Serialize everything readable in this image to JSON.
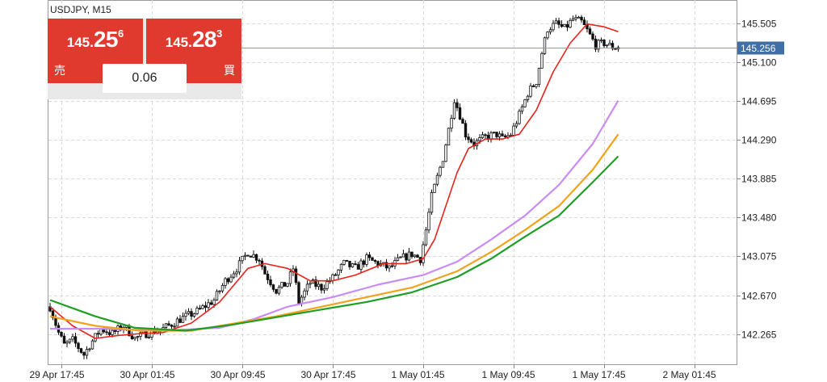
{
  "header": {
    "symbol_timeframe": "USDJPY, M15"
  },
  "trade_panel": {
    "sell": {
      "price_small": "145.",
      "price_big": "25",
      "price_sup": "6",
      "label": "売"
    },
    "buy": {
      "price_small": "145.",
      "price_big": "28",
      "price_sup": "3",
      "label": "買"
    },
    "spread": "0.06"
  },
  "colors": {
    "candle": "#111111",
    "ma_red": "#e8231c",
    "ma_violet": "#c98cf5",
    "ma_orange": "#f2a21b",
    "ma_green": "#1e9e24",
    "current_price_line": "#7fa2c4",
    "current_price_tag": "#3f6fa4",
    "grid": "#d9d9d9",
    "sell_button": "#e03a2f"
  },
  "chart_data": {
    "type": "candlestick",
    "current_price": 145.256,
    "current_price_label": "145.256",
    "ylim": [
      141.95,
      145.75
    ],
    "y_ticks": [
      142.265,
      142.67,
      143.075,
      143.48,
      143.885,
      144.29,
      144.695,
      145.1,
      145.505
    ],
    "y_tick_labels": [
      "142.265",
      "142.670",
      "143.075",
      "143.480",
      "143.885",
      "144.290",
      "144.695",
      "145.100",
      "145.505"
    ],
    "x_tick_labels": [
      "29 Apr 17:45",
      "30 Apr 01:45",
      "30 Apr 09:45",
      "30 Apr 17:45",
      "1 May 01:45",
      "1 May 09:45",
      "1 May 17:45",
      "2 May 01:45"
    ],
    "x_tick_bar_index": [
      4,
      36,
      68,
      100,
      132,
      164,
      196,
      228
    ],
    "bar_count": 230,
    "grid": true,
    "close_anchors": [
      [
        0,
        142.55
      ],
      [
        3,
        142.28
      ],
      [
        5,
        142.15
      ],
      [
        8,
        142.2
      ],
      [
        12,
        142.05
      ],
      [
        14,
        142.15
      ],
      [
        18,
        142.32
      ],
      [
        22,
        142.27
      ],
      [
        26,
        142.35
      ],
      [
        30,
        142.22
      ],
      [
        34,
        142.27
      ],
      [
        40,
        142.32
      ],
      [
        46,
        142.42
      ],
      [
        52,
        142.5
      ],
      [
        58,
        142.62
      ],
      [
        62,
        142.82
      ],
      [
        66,
        142.95
      ],
      [
        70,
        143.12
      ],
      [
        74,
        143.05
      ],
      [
        76,
        142.9
      ],
      [
        80,
        142.72
      ],
      [
        84,
        142.8
      ],
      [
        86,
        142.95
      ],
      [
        88,
        142.6
      ],
      [
        92,
        142.8
      ],
      [
        96,
        142.75
      ],
      [
        100,
        142.85
      ],
      [
        104,
        143.0
      ],
      [
        108,
        142.95
      ],
      [
        112,
        143.05
      ],
      [
        116,
        143.0
      ],
      [
        120,
        142.95
      ],
      [
        124,
        143.05
      ],
      [
        128,
        143.1
      ],
      [
        131,
        143.05
      ],
      [
        133,
        143.35
      ],
      [
        135,
        143.7
      ],
      [
        137,
        143.9
      ],
      [
        139,
        144.1
      ],
      [
        141,
        144.4
      ],
      [
        143,
        144.72
      ],
      [
        145,
        144.55
      ],
      [
        147,
        144.35
      ],
      [
        150,
        144.25
      ],
      [
        154,
        144.32
      ],
      [
        158,
        144.35
      ],
      [
        160,
        144.3
      ],
      [
        163,
        144.35
      ],
      [
        166,
        144.55
      ],
      [
        169,
        144.78
      ],
      [
        172,
        144.9
      ],
      [
        174,
        145.2
      ],
      [
        176,
        145.45
      ],
      [
        179,
        145.5
      ],
      [
        182,
        145.45
      ],
      [
        185,
        145.55
      ],
      [
        188,
        145.52
      ],
      [
        190,
        145.43
      ],
      [
        193,
        145.28
      ],
      [
        196,
        145.3
      ],
      [
        199,
        145.26
      ],
      [
        201,
        145.25
      ]
    ],
    "series": [
      {
        "color_key": "ma_red",
        "points": [
          [
            0,
            142.55
          ],
          [
            8,
            142.35
          ],
          [
            16,
            142.22
          ],
          [
            24,
            142.25
          ],
          [
            32,
            142.27
          ],
          [
            40,
            142.28
          ],
          [
            50,
            142.38
          ],
          [
            60,
            142.6
          ],
          [
            70,
            142.95
          ],
          [
            76,
            143.0
          ],
          [
            84,
            142.95
          ],
          [
            92,
            142.82
          ],
          [
            100,
            142.82
          ],
          [
            108,
            142.88
          ],
          [
            118,
            143.0
          ],
          [
            126,
            143.0
          ],
          [
            132,
            143.05
          ],
          [
            136,
            143.25
          ],
          [
            140,
            143.6
          ],
          [
            144,
            143.95
          ],
          [
            148,
            144.2
          ],
          [
            154,
            144.3
          ],
          [
            160,
            144.3
          ],
          [
            166,
            144.35
          ],
          [
            172,
            144.6
          ],
          [
            178,
            145.0
          ],
          [
            184,
            145.3
          ],
          [
            190,
            145.5
          ],
          [
            196,
            145.47
          ],
          [
            201,
            145.42
          ]
        ]
      },
      {
        "color_key": "ma_violet",
        "points": [
          [
            0,
            142.32
          ],
          [
            20,
            142.32
          ],
          [
            40,
            142.3
          ],
          [
            60,
            142.33
          ],
          [
            72,
            142.42
          ],
          [
            84,
            142.55
          ],
          [
            100,
            142.65
          ],
          [
            116,
            142.78
          ],
          [
            132,
            142.88
          ],
          [
            144,
            143.02
          ],
          [
            156,
            143.25
          ],
          [
            168,
            143.5
          ],
          [
            180,
            143.82
          ],
          [
            192,
            144.25
          ],
          [
            201,
            144.7
          ]
        ]
      },
      {
        "color_key": "ma_orange",
        "points": [
          [
            0,
            142.45
          ],
          [
            16,
            142.35
          ],
          [
            32,
            142.3
          ],
          [
            50,
            142.3
          ],
          [
            66,
            142.38
          ],
          [
            80,
            142.45
          ],
          [
            96,
            142.55
          ],
          [
            112,
            142.65
          ],
          [
            128,
            142.75
          ],
          [
            144,
            142.92
          ],
          [
            156,
            143.12
          ],
          [
            168,
            143.35
          ],
          [
            180,
            143.6
          ],
          [
            192,
            143.98
          ],
          [
            201,
            144.35
          ]
        ]
      },
      {
        "color_key": "ma_green",
        "points": [
          [
            0,
            142.62
          ],
          [
            16,
            142.45
          ],
          [
            30,
            142.33
          ],
          [
            48,
            142.3
          ],
          [
            64,
            142.36
          ],
          [
            80,
            142.44
          ],
          [
            96,
            142.52
          ],
          [
            112,
            142.6
          ],
          [
            128,
            142.7
          ],
          [
            144,
            142.86
          ],
          [
            156,
            143.05
          ],
          [
            168,
            143.28
          ],
          [
            180,
            143.5
          ],
          [
            192,
            143.85
          ],
          [
            201,
            144.12
          ]
        ]
      }
    ]
  }
}
